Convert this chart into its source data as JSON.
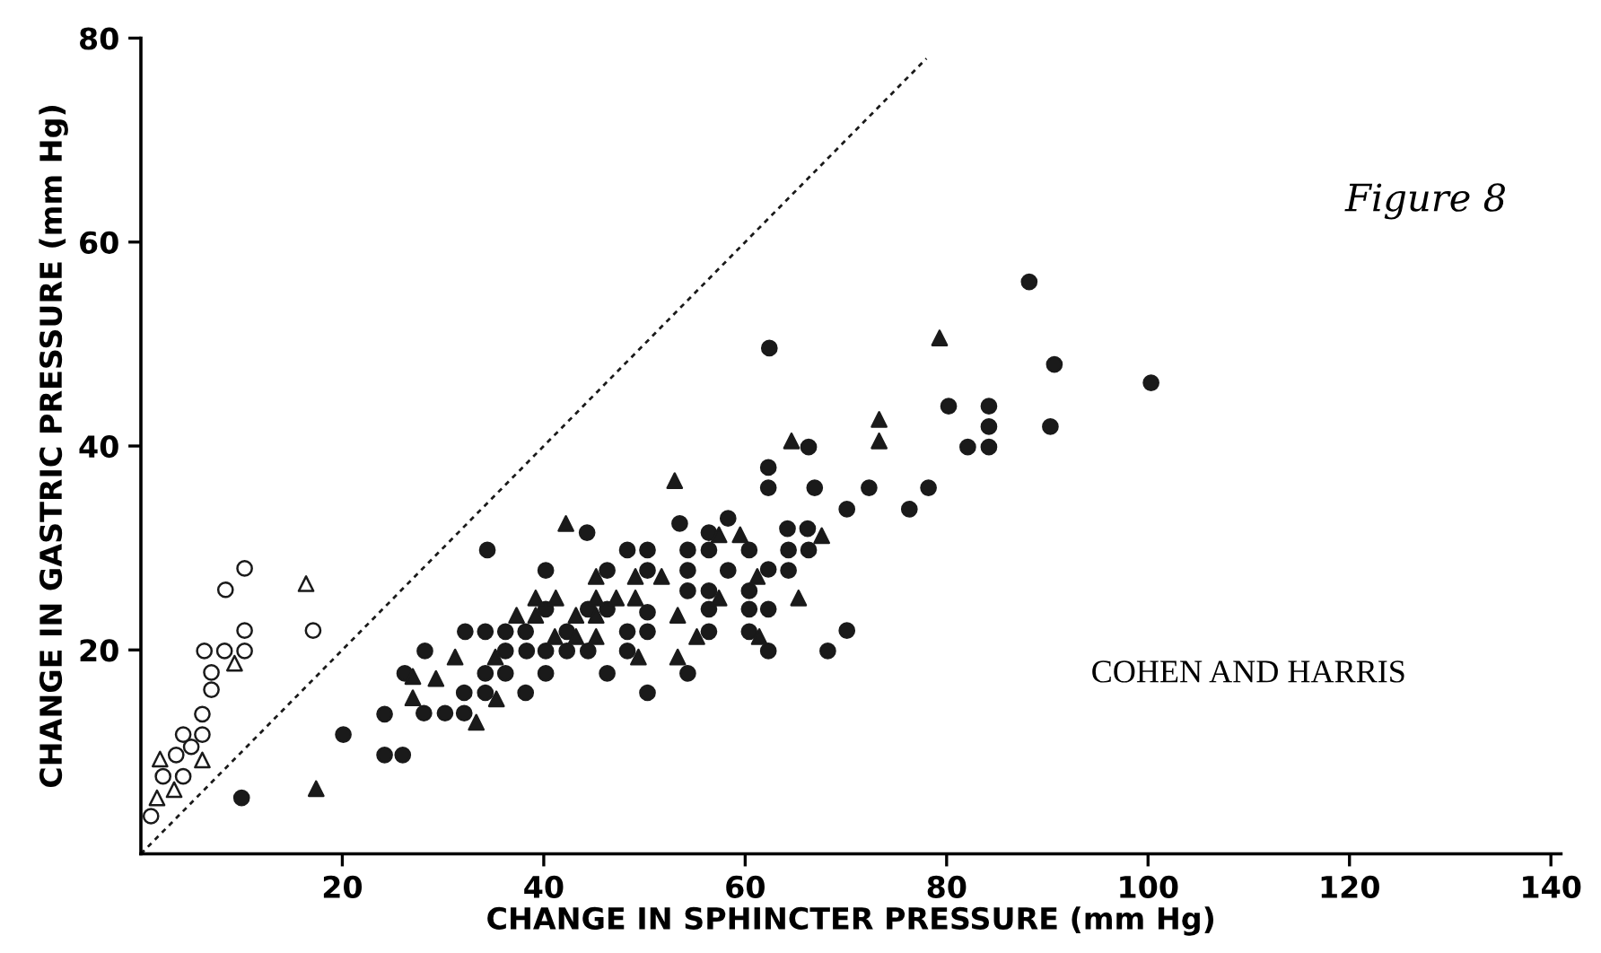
{
  "chart_data": {
    "type": "scatter",
    "xlabel": "CHANGE IN SPHINCTER PRESSURE (mm Hg)",
    "ylabel": "CHANGE IN GASTRIC PRESSURE (mm Hg)",
    "annotations": [
      "Figure 8",
      "COHEN AND HARRIS"
    ],
    "xlim": [
      0,
      141
    ],
    "xticks": [
      20,
      40,
      60,
      80,
      100,
      120,
      140
    ],
    "ylim": [
      0,
      80
    ],
    "yticks": [
      20,
      40,
      60,
      80
    ],
    "grid": false,
    "legend": false,
    "series": [
      {
        "marker": "circle",
        "color": "#ffffff",
        "x": [
          1.0,
          2.2,
          3.5,
          4.2,
          4.2,
          5.0,
          6.1,
          6.1,
          6.3,
          7.0,
          7.0,
          8.3,
          8.4,
          10.3,
          10.3,
          10.3,
          17.1
        ],
        "values": [
          3.7,
          7.6,
          9.7,
          11.7,
          7.6,
          10.5,
          11.7,
          13.7,
          19.9,
          16.1,
          17.8,
          19.9,
          25.9,
          28.0,
          21.9,
          19.9,
          21.9
        ]
      },
      {
        "marker": "triangle",
        "color": "#ffffff",
        "x": [
          1.9,
          1.6,
          3.3,
          6.1,
          9.3,
          16.4
        ],
        "values": [
          9.3,
          5.5,
          6.3,
          9.2,
          18.7,
          26.5
        ]
      },
      {
        "marker": "circle",
        "color": "#1a1a1a",
        "x": [
          10.0,
          20.1,
          24.2,
          24.2,
          26.0,
          28.2,
          34.4,
          26.2,
          28.1,
          30.2,
          32.1,
          32.1,
          32.2,
          34.2,
          34.2,
          34.2,
          36.2,
          36.2,
          36.2,
          38.2,
          38.2,
          38.3,
          40.2,
          40.2,
          40.2,
          40.2,
          42.3,
          42.3,
          44.4,
          44.4,
          46.3,
          46.3,
          46.3,
          48.3,
          48.3,
          48.3,
          50.3,
          50.3,
          50.3,
          50.3,
          50.3,
          54.3,
          54.3,
          54.3,
          54.3,
          56.4,
          56.4,
          56.4,
          56.4,
          58.3,
          60.4,
          60.4,
          60.4,
          60.4,
          62.3,
          62.3,
          64.3,
          64.3,
          66.3,
          68.2,
          88.2,
          62.4,
          90.7,
          100.3,
          80.2,
          84.2,
          84.2,
          90.3,
          82.1,
          84.2,
          66.3,
          62.3,
          62.3,
          66.9,
          72.3,
          78.2,
          70.1,
          76.3,
          64.2,
          66.2,
          62.3,
          70.1,
          53.5,
          44.3,
          58.3,
          56.4
        ],
        "values": [
          5.5,
          11.7,
          13.7,
          9.7,
          9.7,
          19.9,
          29.8,
          17.7,
          13.8,
          13.8,
          13.8,
          15.8,
          21.8,
          21.8,
          17.7,
          15.8,
          21.8,
          19.9,
          17.7,
          15.8,
          21.8,
          19.9,
          27.8,
          24.0,
          19.9,
          17.7,
          19.9,
          21.8,
          19.9,
          24.0,
          27.8,
          17.7,
          24.0,
          29.8,
          21.8,
          19.9,
          29.8,
          27.8,
          23.7,
          21.8,
          15.8,
          29.8,
          27.8,
          25.8,
          17.7,
          29.8,
          25.8,
          24.0,
          21.8,
          27.8,
          29.8,
          25.8,
          24.0,
          21.8,
          24.0,
          19.9,
          29.8,
          27.8,
          29.8,
          19.9,
          56.1,
          49.6,
          48.0,
          46.2,
          43.9,
          43.9,
          41.9,
          41.9,
          39.9,
          39.9,
          39.9,
          37.9,
          35.9,
          35.9,
          35.9,
          35.9,
          33.8,
          33.8,
          31.9,
          31.9,
          27.9,
          21.9,
          32.4,
          31.5,
          32.9,
          31.5
        ]
      },
      {
        "marker": "triangle",
        "color": "#1a1a1a",
        "x": [
          17.4,
          27.0,
          27.0,
          29.3,
          31.2,
          33.3,
          35.2,
          35.3,
          37.3,
          39.2,
          39.2,
          41.2,
          41.1,
          43.2,
          43.2,
          45.2,
          45.2,
          45.2,
          45.2,
          47.2,
          49.1,
          49.1,
          49.4,
          51.7,
          53.3,
          53.3,
          55.2,
          57.4,
          57.4,
          59.5,
          61.2,
          61.4,
          65.3,
          79.3,
          73.3,
          73.3,
          64.6,
          67.6,
          53.0,
          42.2
        ],
        "values": [
          6.4,
          17.4,
          15.3,
          17.2,
          19.3,
          12.9,
          19.3,
          15.2,
          23.4,
          25.1,
          23.4,
          25.1,
          21.3,
          23.4,
          21.3,
          27.2,
          25.1,
          23.4,
          21.3,
          25.1,
          27.2,
          25.1,
          19.3,
          27.2,
          23.4,
          19.3,
          21.3,
          25.1,
          31.3,
          31.3,
          27.2,
          21.3,
          25.1,
          50.6,
          42.6,
          40.5,
          40.5,
          31.2,
          36.6,
          32.4
        ]
      },
      {
        "type": "line",
        "line_style": "dotted",
        "color": "#1a1a1a",
        "x": [
          0,
          78
        ],
        "values": [
          0,
          78
        ]
      }
    ]
  }
}
